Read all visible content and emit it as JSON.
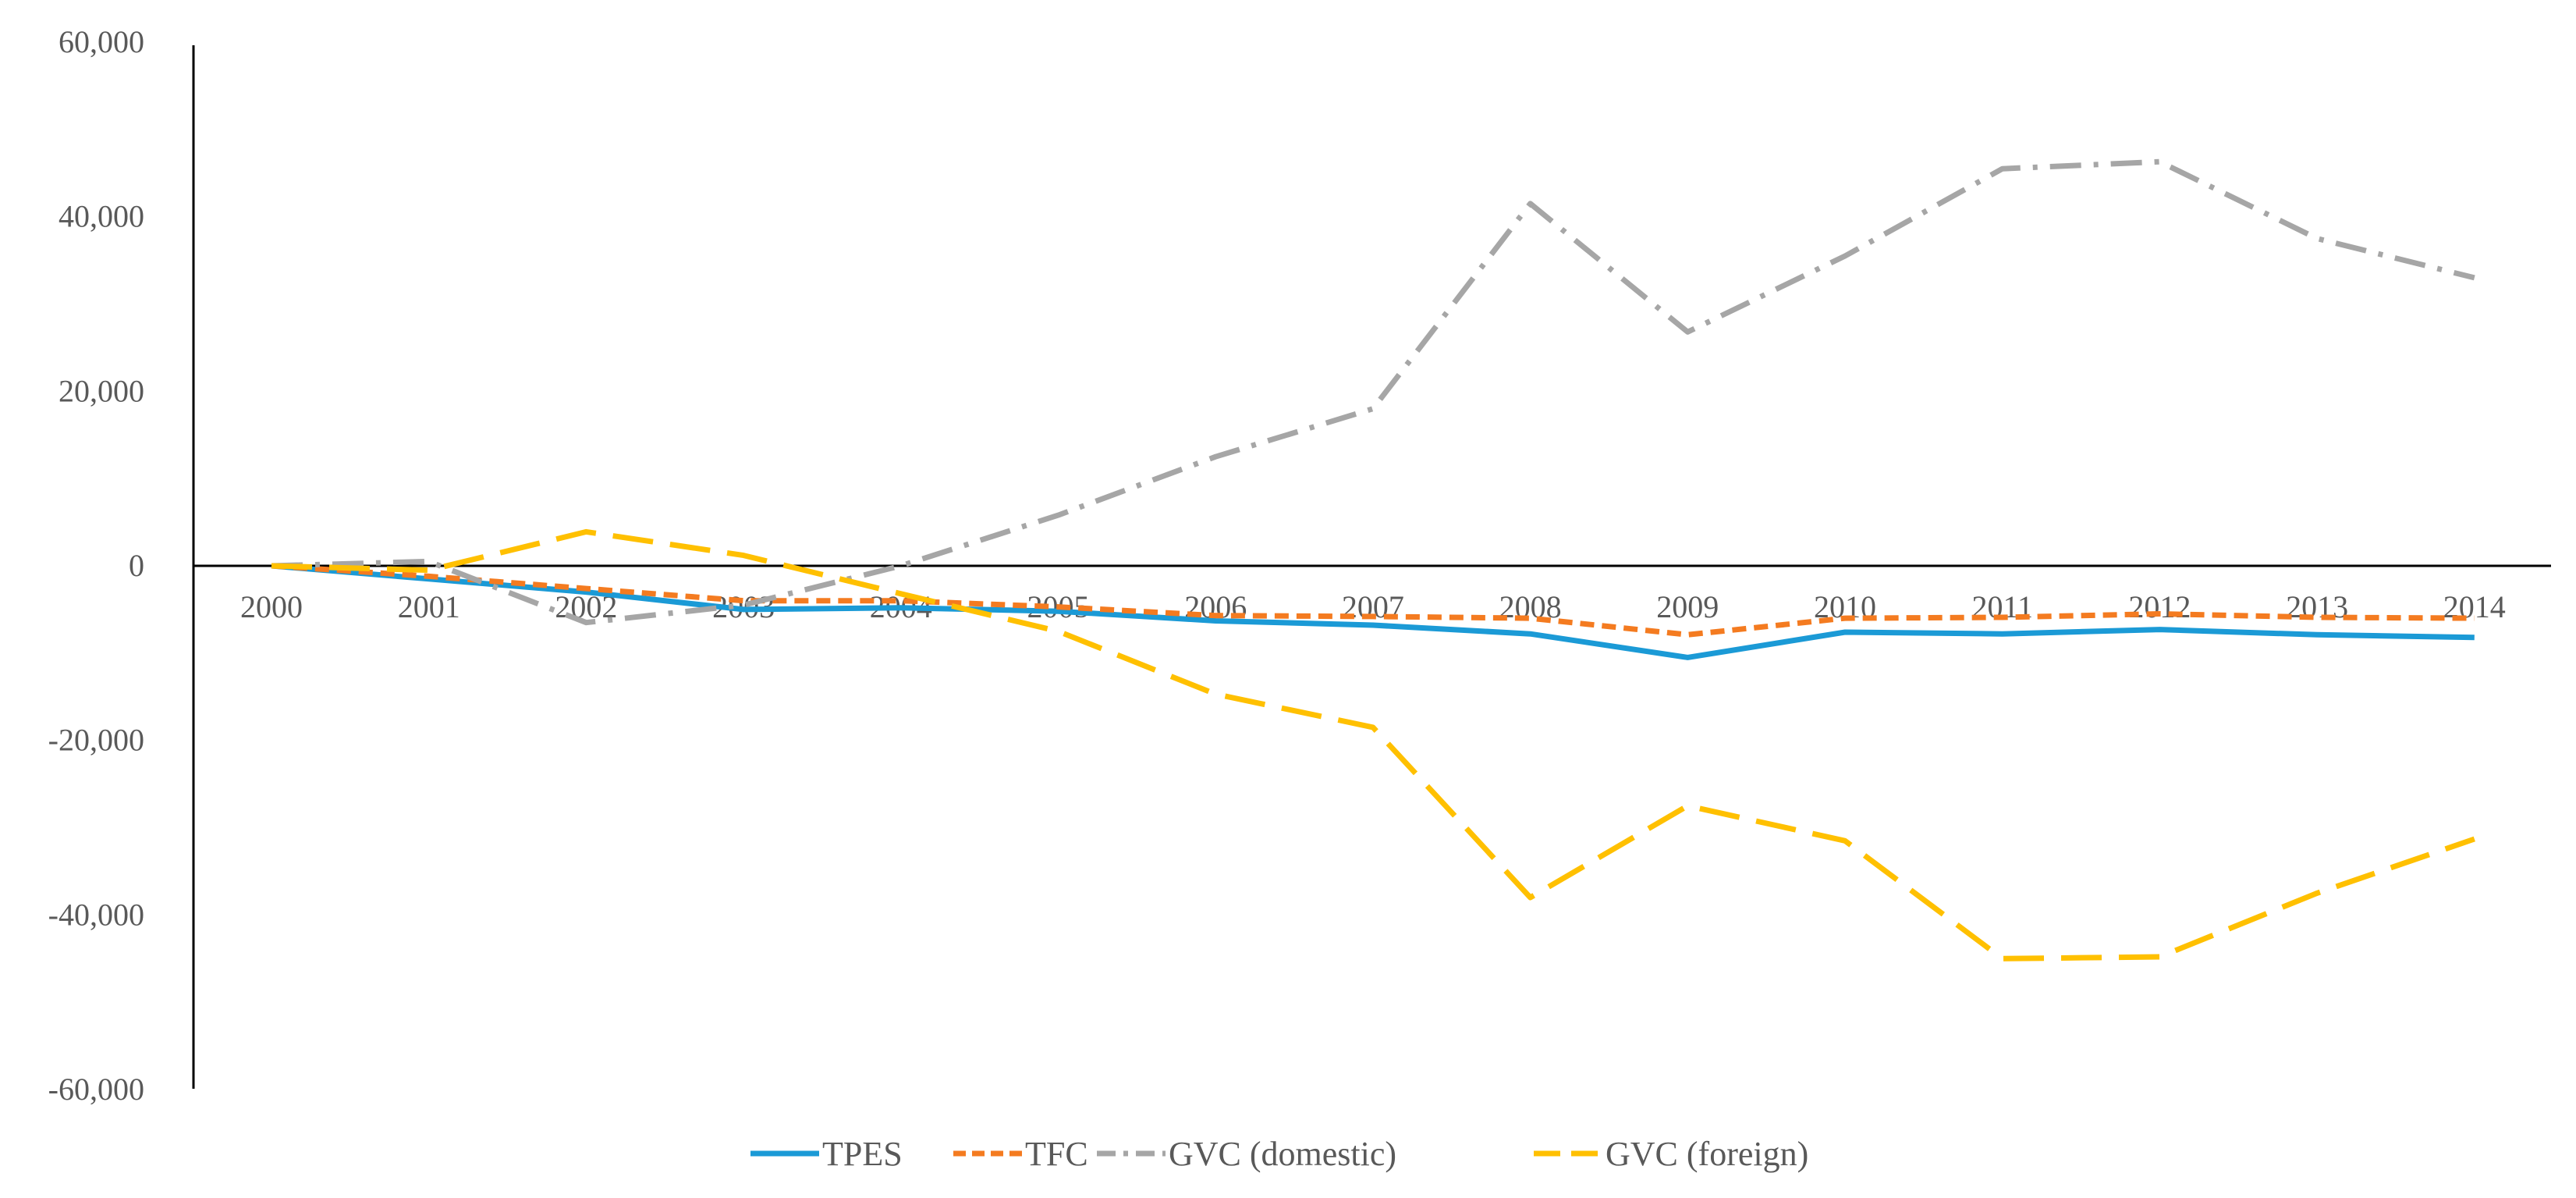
{
  "chart_data": {
    "type": "line",
    "title": "",
    "xlabel": "",
    "ylabel": "",
    "x": [
      "2000",
      "2001",
      "2002",
      "2003",
      "2004",
      "2005",
      "2006",
      "2007",
      "2008",
      "2009",
      "2010",
      "2011",
      "2012",
      "2013",
      "2014"
    ],
    "ylim": [
      -60000,
      60000
    ],
    "yticks": [
      60000,
      40000,
      20000,
      0,
      -20000,
      -40000,
      -60000
    ],
    "ytick_labels": [
      "60,000",
      "40,000",
      "20,000",
      "0",
      "-20,000",
      "-40,000",
      "-60,000"
    ],
    "grid": false,
    "legend_position": "bottom",
    "series": [
      {
        "name": "TPES",
        "color": "#1b9ad6",
        "dash": "solid",
        "values": [
          0,
          -1500,
          -3000,
          -5000,
          -4800,
          -5200,
          -6300,
          -6800,
          -7800,
          -10500,
          -7600,
          -7800,
          -7300,
          -7900,
          -8200
        ]
      },
      {
        "name": "TFC",
        "color": "#f47b20",
        "dash": "dash",
        "values": [
          0,
          -1200,
          -2600,
          -4000,
          -4000,
          -4700,
          -5700,
          -5800,
          -6000,
          -7900,
          -6000,
          -5900,
          -5500,
          -5900,
          -6000
        ]
      },
      {
        "name": "GVC (domestic)",
        "color": "#a6a6a6",
        "dash": "dashdot",
        "values": [
          0,
          500,
          -6500,
          -4500,
          0,
          5800,
          12500,
          18000,
          41500,
          26800,
          35500,
          45500,
          46300,
          37500,
          33000
        ]
      },
      {
        "name": "GVC (foreign)",
        "color": "#ffc000",
        "dash": "longdash",
        "values": [
          0,
          -500,
          3900,
          1200,
          -3200,
          -7500,
          -14700,
          -18500,
          -38000,
          -27500,
          -31500,
          -45000,
          -44800,
          -37500,
          -31300
        ]
      }
    ]
  }
}
